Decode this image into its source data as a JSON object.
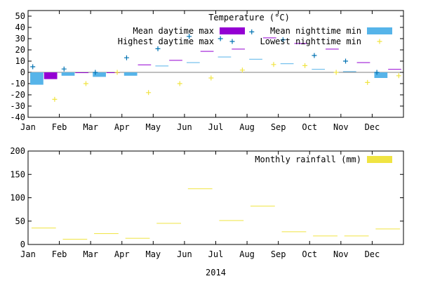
{
  "chart_data": [
    {
      "type": "bar",
      "title": "Temperature (°C)",
      "categories": [
        "Jan",
        "Feb",
        "Mar",
        "Apr",
        "May",
        "Jun",
        "Jul",
        "Aug",
        "Sep",
        "Oct",
        "Nov",
        "Dec"
      ],
      "ylim": [
        -40,
        55
      ],
      "yticks": [
        -40,
        -30,
        -20,
        -10,
        0,
        10,
        20,
        30,
        40,
        50
      ],
      "grid": false,
      "legend_position": "top-right",
      "series": [
        {
          "name": "Mean nighttime min",
          "kind": "bar",
          "color": "#56b4e9",
          "values": [
            -11,
            -3,
            -4,
            -3,
            6,
            9,
            14,
            12,
            8,
            3,
            1,
            -5
          ]
        },
        {
          "name": "Mean daytime max",
          "kind": "bar",
          "color": "#9400d3",
          "values": [
            -6,
            0,
            0,
            7,
            11,
            19,
            21,
            31,
            26,
            21,
            9,
            3
          ]
        },
        {
          "name": "Highest daytime max",
          "kind": "point",
          "marker": "+",
          "color": "#0072b2",
          "values": [
            5,
            3,
            0,
            13,
            21,
            32,
            30,
            36,
            29,
            15,
            10,
            0
          ]
        },
        {
          "name": "Lowest nighttime min",
          "kind": "point",
          "marker": "+",
          "color": "#f0e442",
          "values": [
            -24,
            -10,
            0,
            -18,
            -10,
            -5,
            2,
            7,
            6,
            0,
            -9,
            -3
          ]
        }
      ]
    },
    {
      "type": "bar",
      "categories": [
        "Jan",
        "Feb",
        "Mar",
        "Apr",
        "May",
        "Jun",
        "Jul",
        "Aug",
        "Sep",
        "Oct",
        "Nov",
        "Dec"
      ],
      "xlabel": "2014",
      "ylim": [
        0,
        200
      ],
      "yticks": [
        0,
        50,
        100,
        150,
        200
      ],
      "grid": false,
      "legend_position": "top-right",
      "series": [
        {
          "name": "Monthly rainfall (mm)",
          "kind": "bar",
          "color": "#f0e442",
          "values": [
            36,
            12,
            24,
            14,
            46,
            120,
            52,
            83,
            28,
            19,
            19,
            34
          ]
        }
      ]
    }
  ]
}
